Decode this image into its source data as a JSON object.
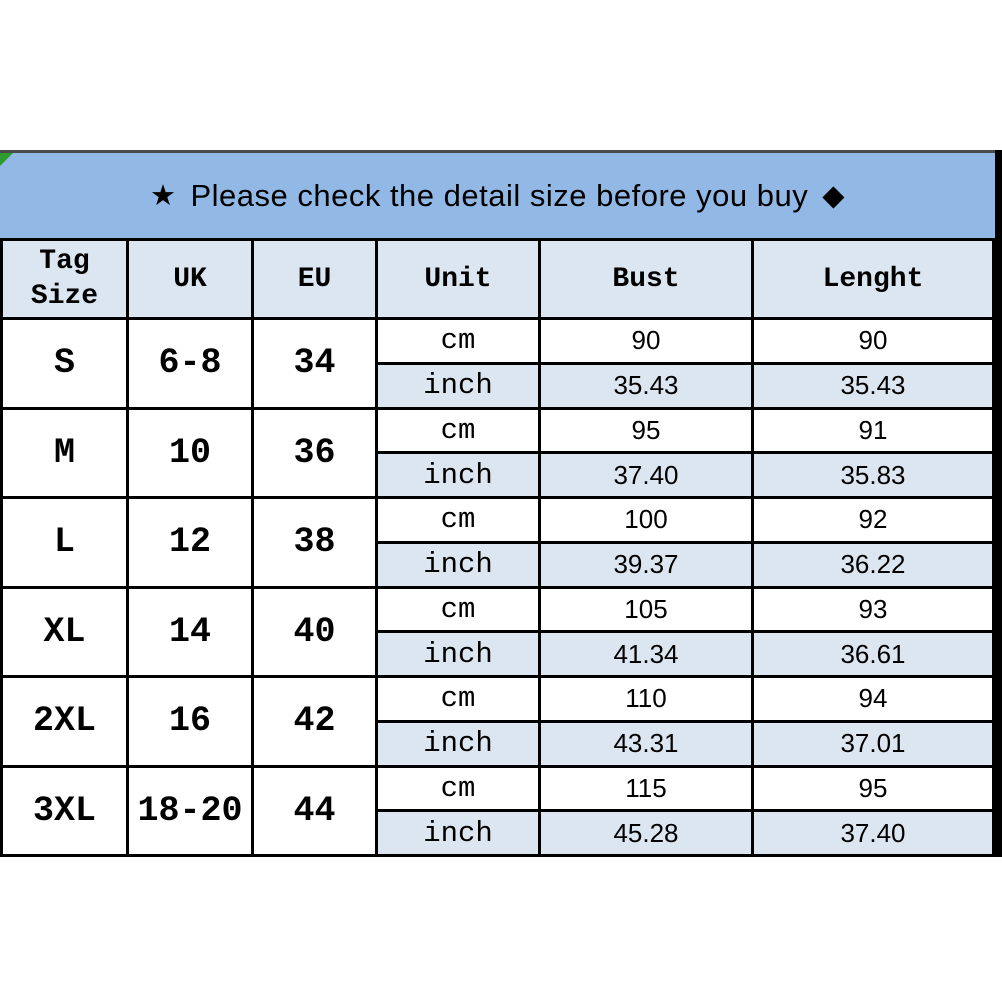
{
  "banner": {
    "star": "★",
    "text": "Please check the detail size before you buy",
    "diamond": "◆"
  },
  "units": {
    "cm": "cm",
    "inch": "inch"
  },
  "colors": {
    "banner_background": "#92B9E5",
    "light_cell_background": "#DCE6F1",
    "grid_line": "#000000",
    "corner_flag_green": "#2E9B2E",
    "text": "#000000"
  },
  "chart_data": {
    "type": "table",
    "title": "★ Please check the detail size before you buy ◆",
    "columns": [
      "Tag Size",
      "UK",
      "EU",
      "Unit",
      "Bust",
      "Lenght"
    ],
    "rows": [
      {
        "size": "S",
        "uk": "6-8",
        "eu": "34",
        "cm": {
          "bust": "90",
          "length": "90"
        },
        "inch": {
          "bust": "35.43",
          "length": "35.43"
        }
      },
      {
        "size": "M",
        "uk": "10",
        "eu": "36",
        "cm": {
          "bust": "95",
          "length": "91"
        },
        "inch": {
          "bust": "37.40",
          "length": "35.83"
        }
      },
      {
        "size": "L",
        "uk": "12",
        "eu": "38",
        "cm": {
          "bust": "100",
          "length": "92"
        },
        "inch": {
          "bust": "39.37",
          "length": "36.22"
        }
      },
      {
        "size": "XL",
        "uk": "14",
        "eu": "40",
        "cm": {
          "bust": "105",
          "length": "93"
        },
        "inch": {
          "bust": "41.34",
          "length": "36.61"
        }
      },
      {
        "size": "2XL",
        "uk": "16",
        "eu": "42",
        "cm": {
          "bust": "110",
          "length": "94"
        },
        "inch": {
          "bust": "43.31",
          "length": "37.01"
        }
      },
      {
        "size": "3XL",
        "uk": "18-20",
        "eu": "44",
        "cm": {
          "bust": "115",
          "length": "95"
        },
        "inch": {
          "bust": "45.28",
          "length": "37.40"
        }
      }
    ]
  }
}
